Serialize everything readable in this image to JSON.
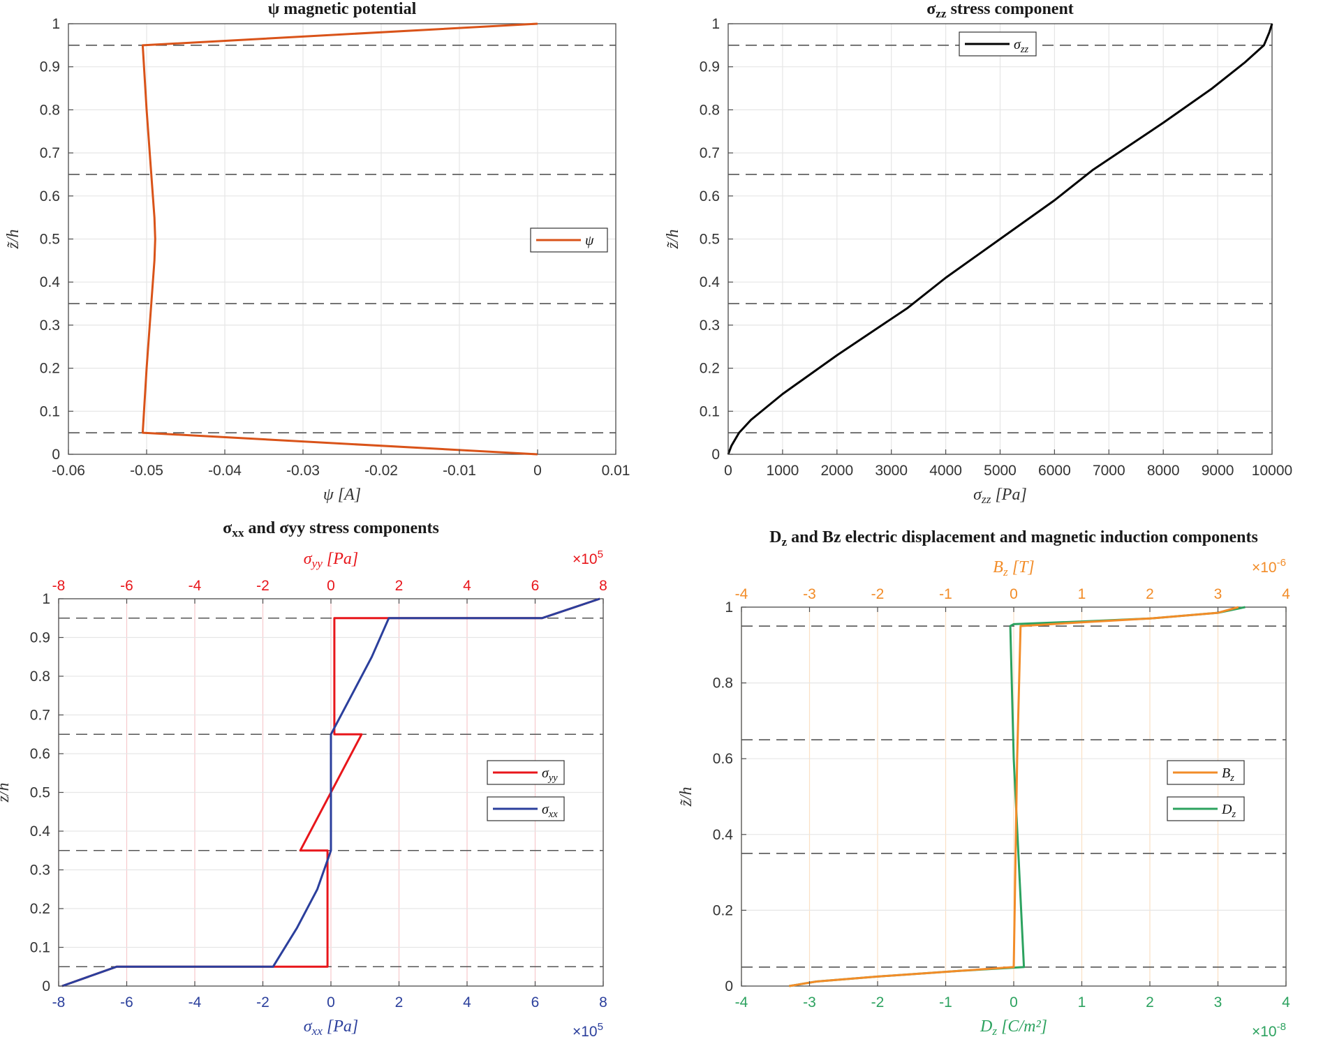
{
  "chart_data": [
    {
      "type": "line",
      "title": "ψ magnetic potential",
      "xlabel": "ψ [A]",
      "ylabel": "z̃/h",
      "xlim": [
        -0.06,
        0.01
      ],
      "ylim": [
        0,
        1
      ],
      "xticks": [
        "-0.06",
        "-0.05",
        "-0.04",
        "-0.03",
        "-0.02",
        "-0.01",
        "0",
        "0.01"
      ],
      "yticks": [
        "0",
        "0.1",
        "0.2",
        "0.3",
        "0.4",
        "0.5",
        "0.6",
        "0.7",
        "0.8",
        "0.9",
        "1"
      ],
      "grid": true,
      "interfaces": [
        0.05,
        0.35,
        0.65,
        0.95
      ],
      "legend": {
        "position": "right",
        "entries": [
          "ψ"
        ]
      },
      "series": [
        {
          "name": "ψ",
          "color": "#d95319",
          "x": [
            0,
            -0.0505,
            -0.05,
            -0.0494,
            -0.049,
            -0.0489,
            -0.049,
            -0.0494,
            -0.05,
            -0.0505,
            0
          ],
          "y": [
            0,
            0.05,
            0.2,
            0.35,
            0.45,
            0.5,
            0.55,
            0.65,
            0.8,
            0.95,
            1
          ]
        }
      ]
    },
    {
      "type": "line",
      "title": "σzz stress component",
      "xlabel": "σzz [Pa]",
      "ylabel": "z̃/h",
      "xlim": [
        0,
        10000
      ],
      "ylim": [
        0,
        1
      ],
      "xticks": [
        "0",
        "1000",
        "2000",
        "3000",
        "4000",
        "5000",
        "6000",
        "7000",
        "8000",
        "9000",
        "10000"
      ],
      "yticks": [
        "0",
        "0.1",
        "0.2",
        "0.3",
        "0.4",
        "0.5",
        "0.6",
        "0.7",
        "0.8",
        "0.9",
        "1"
      ],
      "grid": true,
      "interfaces": [
        0.05,
        0.35,
        0.65,
        0.95
      ],
      "legend": {
        "position": "top-left",
        "entries": [
          "σzz"
        ]
      },
      "series": [
        {
          "name": "σzz",
          "color": "#000000",
          "x": [
            0,
            60,
            200,
            420,
            1000,
            2000,
            3300,
            4000,
            5000,
            6000,
            6700,
            8000,
            8900,
            9500,
            9850,
            9950,
            10000
          ],
          "y": [
            0,
            0.02,
            0.05,
            0.08,
            0.14,
            0.23,
            0.34,
            0.41,
            0.5,
            0.59,
            0.66,
            0.77,
            0.85,
            0.91,
            0.95,
            0.98,
            1.0
          ]
        }
      ]
    },
    {
      "type": "line",
      "title": "σxx and σyy stress components",
      "xlabel": "σxx [Pa]",
      "x_exponent": "×10^5",
      "x2label": "σyy [Pa]",
      "x2_exponent": "×10^5",
      "ylabel": "z̃/h",
      "xlim": [
        -8,
        8
      ],
      "x2lim": [
        -8,
        8
      ],
      "ylim": [
        0,
        1
      ],
      "xticks": [
        "-8",
        "-6",
        "-4",
        "-2",
        "0",
        "2",
        "4",
        "6",
        "8"
      ],
      "x2ticks": [
        "-8",
        "-6",
        "-4",
        "-2",
        "0",
        "2",
        "4",
        "6",
        "8"
      ],
      "yticks": [
        "0",
        "0.1",
        "0.2",
        "0.3",
        "0.4",
        "0.5",
        "0.6",
        "0.7",
        "0.8",
        "0.9",
        "1"
      ],
      "grid": true,
      "interfaces": [
        0.05,
        0.35,
        0.65,
        0.95
      ],
      "legend": {
        "position": "right",
        "entries": [
          "σyy",
          "σxx"
        ]
      },
      "series": [
        {
          "name": "σyy",
          "color": "#e8161b",
          "axis": "top",
          "x": [
            -7.9,
            -6.3,
            -0.1,
            -0.1,
            -0.9,
            0.9,
            0.1,
            0.1,
            6.2,
            7.9
          ],
          "y": [
            0,
            0.05,
            0.05,
            0.35,
            0.35,
            0.65,
            0.65,
            0.95,
            0.95,
            1.0
          ]
        },
        {
          "name": "σxx",
          "color": "#2b3f9c",
          "axis": "bottom",
          "x": [
            -7.9,
            -6.3,
            -1.7,
            -1.0,
            -0.4,
            0.0,
            0.0,
            0.0,
            0.6,
            1.2,
            1.7,
            6.2,
            7.9
          ],
          "y": [
            0,
            0.05,
            0.05,
            0.15,
            0.25,
            0.35,
            0.5,
            0.65,
            0.75,
            0.85,
            0.95,
            0.95,
            1.0
          ]
        }
      ]
    },
    {
      "type": "line",
      "title": "Dz and Bz electric displacement and magnetic induction components",
      "xlabel": "Dz [C/m²]",
      "x_exponent": "×10^-8",
      "x2label": "Bz [T]",
      "x2_exponent": "×10^-6",
      "ylabel": "z̃/h",
      "xlim": [
        -4,
        4
      ],
      "x2lim": [
        -4,
        4
      ],
      "ylim": [
        0,
        1
      ],
      "xticks": [
        "-4",
        "-3",
        "-2",
        "-1",
        "0",
        "1",
        "2",
        "3",
        "4"
      ],
      "x2ticks": [
        "-4",
        "-3",
        "-2",
        "-1",
        "0",
        "1",
        "2",
        "3",
        "4"
      ],
      "yticks": [
        "0",
        "0.2",
        "0.4",
        "0.6",
        "0.8",
        "1"
      ],
      "grid": true,
      "interfaces": [
        0.05,
        0.35,
        0.65,
        0.95
      ],
      "legend": {
        "position": "right",
        "entries": [
          "Bz",
          "Dz"
        ]
      },
      "series": [
        {
          "name": "Dz",
          "color": "#2ca25f",
          "axis": "bottom",
          "x": [
            -3.3,
            -2.9,
            -2.0,
            -0.8,
            0.15,
            0.0,
            -0.05,
            0.0,
            1.0,
            2.0,
            3.0,
            3.4
          ],
          "y": [
            0,
            0.012,
            0.025,
            0.04,
            0.05,
            0.6,
            0.95,
            0.955,
            0.962,
            0.97,
            0.985,
            1.0
          ]
        },
        {
          "name": "Bz",
          "color": "#f28c28",
          "axis": "top",
          "x": [
            -3.3,
            -2.9,
            -2.0,
            -0.8,
            0.0,
            0.05,
            0.1,
            1.0,
            2.0,
            3.0,
            3.3
          ],
          "y": [
            0,
            0.012,
            0.025,
            0.04,
            0.05,
            0.6,
            0.95,
            0.96,
            0.97,
            0.985,
            1.0
          ]
        }
      ]
    }
  ]
}
